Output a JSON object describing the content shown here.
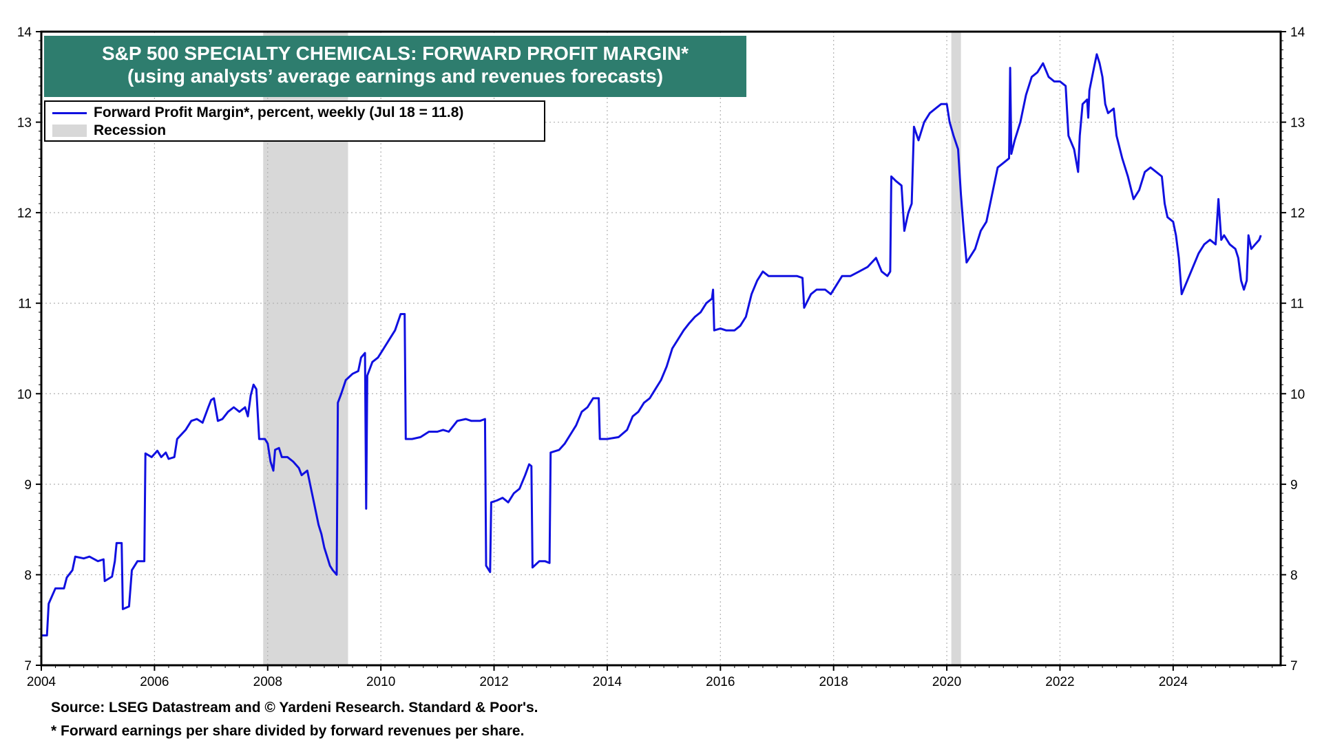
{
  "chart_data": {
    "type": "line",
    "title": "S&P 500 SPECIALTY CHEMICALS: FORWARD PROFIT MARGIN*",
    "subtitle": "(using analysts’ average earnings and revenues forecasts)",
    "xlim": [
      2004,
      2025.9
    ],
    "ylim": [
      7,
      14
    ],
    "x_ticks": [
      "2004",
      "2006",
      "2008",
      "2010",
      "2012",
      "2014",
      "2016",
      "2018",
      "2020",
      "2022",
      "2024"
    ],
    "y_ticks": [
      "7",
      "8",
      "9",
      "10",
      "11",
      "12",
      "13",
      "14"
    ],
    "grid": true,
    "legend_placement": "top-left",
    "series": [
      {
        "name": "Forward Profit Margin*, percent, weekly (Jul 18 = 11.8)",
        "color": "#1010e0",
        "points": [
          [
            2004.0,
            7.33
          ],
          [
            2004.1,
            7.33
          ],
          [
            2004.13,
            7.68
          ],
          [
            2004.25,
            7.85
          ],
          [
            2004.4,
            7.85
          ],
          [
            2004.45,
            7.97
          ],
          [
            2004.55,
            8.05
          ],
          [
            2004.6,
            8.2
          ],
          [
            2004.75,
            8.18
          ],
          [
            2004.85,
            8.2
          ],
          [
            2005.0,
            8.15
          ],
          [
            2005.1,
            8.17
          ],
          [
            2005.12,
            7.93
          ],
          [
            2005.25,
            7.98
          ],
          [
            2005.3,
            8.15
          ],
          [
            2005.33,
            8.35
          ],
          [
            2005.42,
            8.35
          ],
          [
            2005.44,
            7.62
          ],
          [
            2005.55,
            7.65
          ],
          [
            2005.6,
            8.05
          ],
          [
            2005.7,
            8.15
          ],
          [
            2005.82,
            8.15
          ],
          [
            2005.84,
            9.34
          ],
          [
            2005.95,
            9.3
          ],
          [
            2006.05,
            9.37
          ],
          [
            2006.12,
            9.3
          ],
          [
            2006.2,
            9.35
          ],
          [
            2006.25,
            9.28
          ],
          [
            2006.35,
            9.3
          ],
          [
            2006.4,
            9.5
          ],
          [
            2006.55,
            9.6
          ],
          [
            2006.65,
            9.7
          ],
          [
            2006.75,
            9.72
          ],
          [
            2006.85,
            9.68
          ],
          [
            2006.95,
            9.85
          ],
          [
            2007.0,
            9.93
          ],
          [
            2007.05,
            9.95
          ],
          [
            2007.12,
            9.7
          ],
          [
            2007.2,
            9.72
          ],
          [
            2007.3,
            9.8
          ],
          [
            2007.4,
            9.85
          ],
          [
            2007.5,
            9.8
          ],
          [
            2007.6,
            9.85
          ],
          [
            2007.65,
            9.75
          ],
          [
            2007.7,
            9.98
          ],
          [
            2007.75,
            10.1
          ],
          [
            2007.8,
            10.05
          ],
          [
            2007.85,
            9.5
          ],
          [
            2007.95,
            9.5
          ],
          [
            2008.0,
            9.45
          ],
          [
            2008.05,
            9.25
          ],
          [
            2008.1,
            9.15
          ],
          [
            2008.13,
            9.38
          ],
          [
            2008.2,
            9.4
          ],
          [
            2008.25,
            9.3
          ],
          [
            2008.35,
            9.3
          ],
          [
            2008.45,
            9.25
          ],
          [
            2008.55,
            9.18
          ],
          [
            2008.6,
            9.1
          ],
          [
            2008.7,
            9.15
          ],
          [
            2008.75,
            9.0
          ],
          [
            2008.8,
            8.85
          ],
          [
            2008.85,
            8.7
          ],
          [
            2008.9,
            8.55
          ],
          [
            2008.95,
            8.45
          ],
          [
            2009.0,
            8.3
          ],
          [
            2009.05,
            8.2
          ],
          [
            2009.1,
            8.1
          ],
          [
            2009.15,
            8.05
          ],
          [
            2009.22,
            8.0
          ],
          [
            2009.24,
            9.9
          ],
          [
            2009.3,
            10.0
          ],
          [
            2009.38,
            10.15
          ],
          [
            2009.5,
            10.22
          ],
          [
            2009.6,
            10.25
          ],
          [
            2009.65,
            10.4
          ],
          [
            2009.72,
            10.45
          ],
          [
            2009.74,
            8.73
          ],
          [
            2009.76,
            10.2
          ],
          [
            2009.85,
            10.35
          ],
          [
            2009.95,
            10.4
          ],
          [
            2010.05,
            10.5
          ],
          [
            2010.15,
            10.6
          ],
          [
            2010.25,
            10.7
          ],
          [
            2010.35,
            10.88
          ],
          [
            2010.42,
            10.88
          ],
          [
            2010.44,
            9.5
          ],
          [
            2010.55,
            9.5
          ],
          [
            2010.7,
            9.52
          ],
          [
            2010.85,
            9.58
          ],
          [
            2011.0,
            9.58
          ],
          [
            2011.1,
            9.6
          ],
          [
            2011.2,
            9.58
          ],
          [
            2011.35,
            9.7
          ],
          [
            2011.5,
            9.72
          ],
          [
            2011.6,
            9.7
          ],
          [
            2011.75,
            9.7
          ],
          [
            2011.84,
            9.72
          ],
          [
            2011.86,
            8.1
          ],
          [
            2011.93,
            8.03
          ],
          [
            2011.95,
            8.8
          ],
          [
            2012.05,
            8.82
          ],
          [
            2012.15,
            8.85
          ],
          [
            2012.25,
            8.8
          ],
          [
            2012.35,
            8.9
          ],
          [
            2012.45,
            8.95
          ],
          [
            2012.55,
            9.1
          ],
          [
            2012.62,
            9.22
          ],
          [
            2012.66,
            9.2
          ],
          [
            2012.68,
            8.08
          ],
          [
            2012.8,
            8.15
          ],
          [
            2012.9,
            8.15
          ],
          [
            2012.98,
            8.13
          ],
          [
            2013.0,
            9.35
          ],
          [
            2013.15,
            9.38
          ],
          [
            2013.25,
            9.45
          ],
          [
            2013.35,
            9.55
          ],
          [
            2013.45,
            9.65
          ],
          [
            2013.55,
            9.8
          ],
          [
            2013.65,
            9.85
          ],
          [
            2013.75,
            9.95
          ],
          [
            2013.85,
            9.95
          ],
          [
            2013.87,
            9.5
          ],
          [
            2014.0,
            9.5
          ],
          [
            2014.2,
            9.52
          ],
          [
            2014.35,
            9.6
          ],
          [
            2014.45,
            9.75
          ],
          [
            2014.55,
            9.8
          ],
          [
            2014.65,
            9.9
          ],
          [
            2014.75,
            9.95
          ],
          [
            2014.85,
            10.05
          ],
          [
            2014.95,
            10.15
          ],
          [
            2015.05,
            10.3
          ],
          [
            2015.15,
            10.5
          ],
          [
            2015.25,
            10.6
          ],
          [
            2015.35,
            10.7
          ],
          [
            2015.45,
            10.78
          ],
          [
            2015.55,
            10.85
          ],
          [
            2015.65,
            10.9
          ],
          [
            2015.75,
            11.0
          ],
          [
            2015.85,
            11.05
          ],
          [
            2015.87,
            11.15
          ],
          [
            2015.89,
            10.7
          ],
          [
            2016.0,
            10.72
          ],
          [
            2016.1,
            10.7
          ],
          [
            2016.25,
            10.7
          ],
          [
            2016.35,
            10.75
          ],
          [
            2016.45,
            10.85
          ],
          [
            2016.55,
            11.1
          ],
          [
            2016.65,
            11.25
          ],
          [
            2016.75,
            11.35
          ],
          [
            2016.85,
            11.3
          ],
          [
            2017.0,
            11.3
          ],
          [
            2017.2,
            11.3
          ],
          [
            2017.35,
            11.3
          ],
          [
            2017.45,
            11.28
          ],
          [
            2017.48,
            10.95
          ],
          [
            2017.6,
            11.1
          ],
          [
            2017.7,
            11.15
          ],
          [
            2017.85,
            11.15
          ],
          [
            2017.95,
            11.1
          ],
          [
            2018.05,
            11.2
          ],
          [
            2018.15,
            11.3
          ],
          [
            2018.3,
            11.3
          ],
          [
            2018.45,
            11.35
          ],
          [
            2018.6,
            11.4
          ],
          [
            2018.75,
            11.5
          ],
          [
            2018.85,
            11.35
          ],
          [
            2018.95,
            11.3
          ],
          [
            2019.0,
            11.35
          ],
          [
            2019.02,
            12.4
          ],
          [
            2019.1,
            12.35
          ],
          [
            2019.2,
            12.3
          ],
          [
            2019.25,
            11.8
          ],
          [
            2019.32,
            12.0
          ],
          [
            2019.38,
            12.1
          ],
          [
            2019.42,
            12.95
          ],
          [
            2019.5,
            12.8
          ],
          [
            2019.6,
            13.0
          ],
          [
            2019.7,
            13.1
          ],
          [
            2019.8,
            13.15
          ],
          [
            2019.9,
            13.2
          ],
          [
            2020.0,
            13.2
          ],
          [
            2020.05,
            13.0
          ],
          [
            2020.12,
            12.85
          ],
          [
            2020.2,
            12.7
          ],
          [
            2020.25,
            12.2
          ],
          [
            2020.3,
            11.8
          ],
          [
            2020.35,
            11.45
          ],
          [
            2020.4,
            11.5
          ],
          [
            2020.45,
            11.55
          ],
          [
            2020.5,
            11.6
          ],
          [
            2020.6,
            11.8
          ],
          [
            2020.7,
            11.9
          ],
          [
            2020.8,
            12.2
          ],
          [
            2020.9,
            12.5
          ],
          [
            2021.0,
            12.55
          ],
          [
            2021.1,
            12.6
          ],
          [
            2021.12,
            13.6
          ],
          [
            2021.14,
            12.65
          ],
          [
            2021.2,
            12.8
          ],
          [
            2021.3,
            13.0
          ],
          [
            2021.4,
            13.3
          ],
          [
            2021.5,
            13.5
          ],
          [
            2021.6,
            13.55
          ],
          [
            2021.7,
            13.65
          ],
          [
            2021.8,
            13.5
          ],
          [
            2021.9,
            13.45
          ],
          [
            2022.0,
            13.45
          ],
          [
            2022.1,
            13.4
          ],
          [
            2022.15,
            12.85
          ],
          [
            2022.25,
            12.7
          ],
          [
            2022.32,
            12.45
          ],
          [
            2022.35,
            12.85
          ],
          [
            2022.4,
            13.2
          ],
          [
            2022.48,
            13.25
          ],
          [
            2022.5,
            13.05
          ],
          [
            2022.52,
            13.35
          ],
          [
            2022.6,
            13.6
          ],
          [
            2022.65,
            13.75
          ],
          [
            2022.7,
            13.65
          ],
          [
            2022.75,
            13.5
          ],
          [
            2022.8,
            13.2
          ],
          [
            2022.85,
            13.1
          ],
          [
            2022.95,
            13.15
          ],
          [
            2023.0,
            12.85
          ],
          [
            2023.1,
            12.6
          ],
          [
            2023.2,
            12.4
          ],
          [
            2023.3,
            12.15
          ],
          [
            2023.4,
            12.25
          ],
          [
            2023.5,
            12.45
          ],
          [
            2023.6,
            12.5
          ],
          [
            2023.7,
            12.45
          ],
          [
            2023.8,
            12.4
          ],
          [
            2023.85,
            12.1
          ],
          [
            2023.9,
            11.95
          ],
          [
            2024.0,
            11.9
          ],
          [
            2024.05,
            11.75
          ],
          [
            2024.1,
            11.5
          ],
          [
            2024.15,
            11.1
          ],
          [
            2024.25,
            11.25
          ],
          [
            2024.35,
            11.4
          ],
          [
            2024.45,
            11.55
          ],
          [
            2024.55,
            11.65
          ],
          [
            2024.65,
            11.7
          ],
          [
            2024.75,
            11.65
          ],
          [
            2024.8,
            12.15
          ],
          [
            2024.85,
            11.7
          ],
          [
            2024.9,
            11.75
          ],
          [
            2025.0,
            11.65
          ],
          [
            2025.1,
            11.6
          ],
          [
            2025.15,
            11.5
          ],
          [
            2025.2,
            11.25
          ],
          [
            2025.25,
            11.15
          ],
          [
            2025.3,
            11.25
          ],
          [
            2025.33,
            11.75
          ],
          [
            2025.38,
            11.6
          ],
          [
            2025.45,
            11.65
          ],
          [
            2025.52,
            11.7
          ],
          [
            2025.55,
            11.75
          ]
        ]
      },
      {
        "name": "Recession",
        "color": "#d8d8d8",
        "ranges": [
          [
            2007.92,
            2009.42
          ],
          [
            2020.08,
            2020.25
          ]
        ]
      }
    ]
  },
  "footer": {
    "source": "Source: LSEG Datastream and © Yardeni Research. Standard & Poor's.",
    "note": "* Forward earnings per share divided by forward revenues per share."
  }
}
